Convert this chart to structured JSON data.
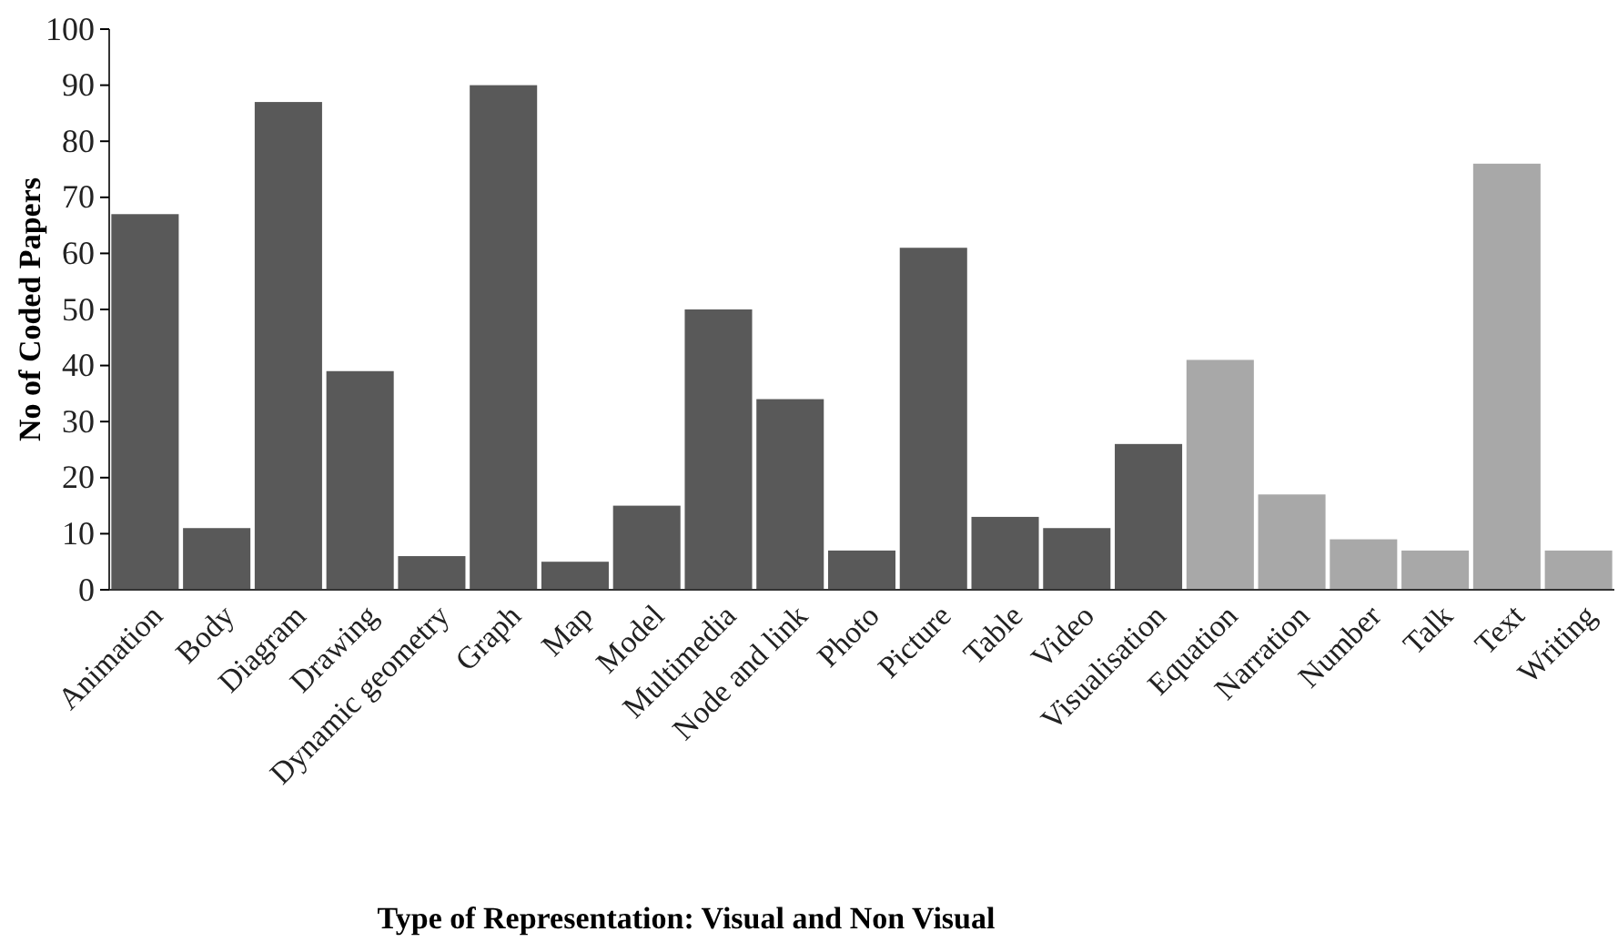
{
  "chart_data": {
    "type": "bar",
    "xlabel": "Type of Representation: Visual and Non Visual",
    "ylabel": "No of Coded Papers",
    "categories": [
      "Animation",
      "Body",
      "Diagram",
      "Drawing",
      "Dynamic geometry",
      "Graph",
      "Map",
      "Model",
      "Multimedia",
      "Node and link",
      "Photo",
      "Picture",
      "Table",
      "Video",
      "Visualisation",
      "Equation",
      "Narration",
      "Number",
      "Talk",
      "Text",
      "Writing"
    ],
    "values": [
      67,
      11,
      87,
      39,
      6,
      90,
      5,
      15,
      50,
      34,
      7,
      61,
      13,
      11,
      26,
      41,
      17,
      9,
      7,
      76,
      7
    ],
    "colors": [
      "#595959",
      "#595959",
      "#595959",
      "#595959",
      "#595959",
      "#595959",
      "#595959",
      "#595959",
      "#595959",
      "#595959",
      "#595959",
      "#595959",
      "#595959",
      "#595959",
      "#595959",
      "#a8a8a8",
      "#a8a8a8",
      "#a8a8a8",
      "#a8a8a8",
      "#a8a8a8",
      "#a8a8a8"
    ],
    "ylim": [
      0,
      100
    ],
    "yticks": [
      0,
      10,
      20,
      30,
      40,
      50,
      60,
      70,
      80,
      90,
      100
    ],
    "grid": false
  }
}
